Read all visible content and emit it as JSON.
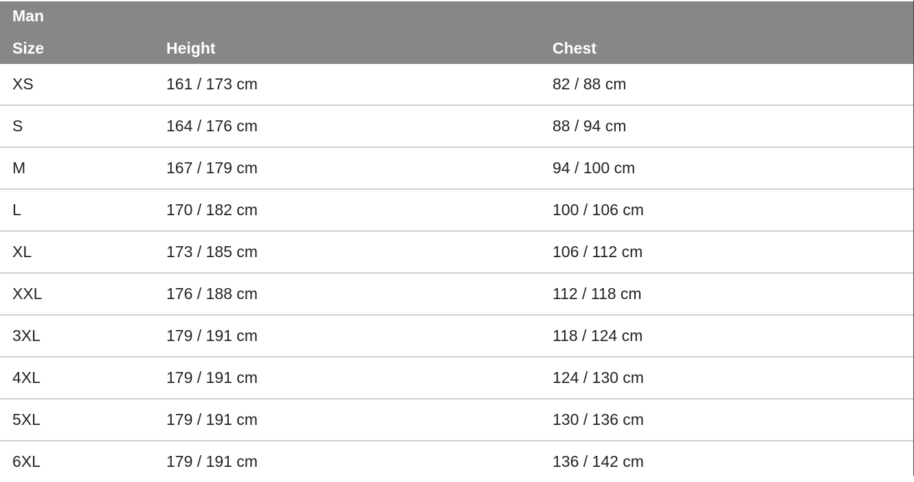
{
  "table": {
    "group_label": "Man",
    "headers": [
      "Size",
      "Height",
      "Chest"
    ],
    "rows": [
      [
        "XS",
        "161 / 173 cm",
        "82 / 88 cm"
      ],
      [
        "S",
        "164 / 176 cm",
        "88 / 94 cm"
      ],
      [
        "M",
        "167 / 179 cm",
        "94 / 100 cm"
      ],
      [
        "L",
        "170 / 182 cm",
        "100 / 106 cm"
      ],
      [
        "XL",
        "173 / 185 cm",
        "106 / 112 cm"
      ],
      [
        "XXL",
        "176 / 188 cm",
        "112 / 118 cm"
      ],
      [
        "3XL",
        "179 / 191 cm",
        "118 / 124 cm"
      ],
      [
        "4XL",
        "179 / 191 cm",
        "124 / 130 cm"
      ],
      [
        "5XL",
        "179 / 191 cm",
        "130 / 136 cm"
      ],
      [
        "6XL",
        "179 / 191 cm",
        "136 / 142 cm"
      ]
    ],
    "header_bg": "#878787"
  }
}
